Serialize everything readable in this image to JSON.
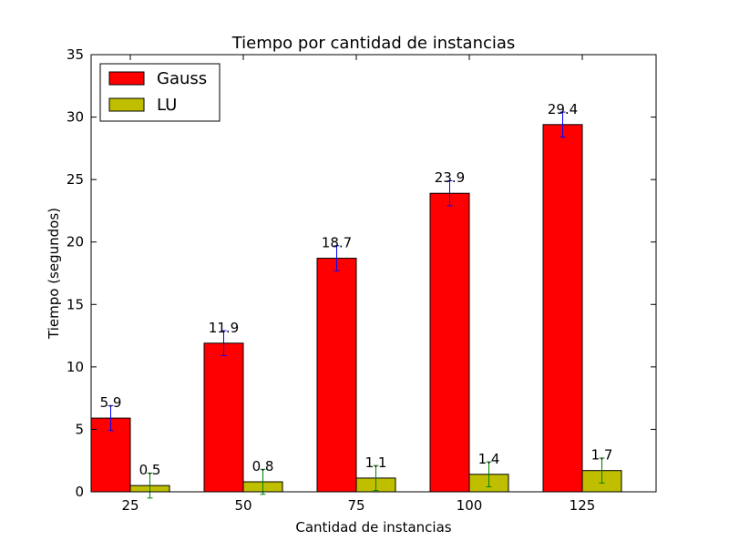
{
  "chart_data": {
    "type": "bar",
    "title": "Tiempo por cantidad de instancias",
    "xlabel": "Cantidad de instancias",
    "ylabel": "Tiempo (segundos)",
    "categories": [
      "25",
      "50",
      "75",
      "100",
      "125"
    ],
    "ylim": [
      0,
      35
    ],
    "yticks": [
      0,
      5,
      10,
      15,
      20,
      25,
      30,
      35
    ],
    "grid": false,
    "legend_position": "top-left",
    "series": [
      {
        "name": "Gauss",
        "color": "#ff0000",
        "error_color": "#0000ff",
        "values": [
          5.9,
          11.9,
          18.7,
          23.9,
          29.4
        ],
        "labels": [
          "5.9",
          "11.9",
          "18.7",
          "23.9",
          "29.4"
        ],
        "errors": [
          1.0,
          1.0,
          1.0,
          1.0,
          1.0
        ]
      },
      {
        "name": "LU",
        "color": "#bfbf00",
        "error_color": "#008000",
        "values": [
          0.5,
          0.8,
          1.1,
          1.4,
          1.7
        ],
        "labels": [
          "0.5",
          "0.8",
          "1.1",
          "1.4",
          "1.7"
        ],
        "errors": [
          1.0,
          1.0,
          1.0,
          1.0,
          1.0
        ]
      }
    ]
  }
}
